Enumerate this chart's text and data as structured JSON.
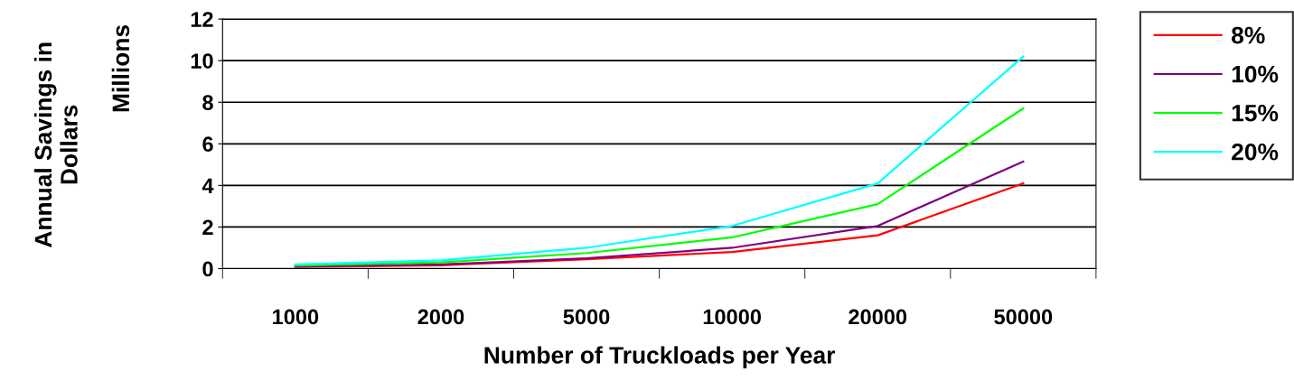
{
  "chart_data": {
    "type": "line",
    "xlabel": "Number of Truckloads per Year",
    "ylabel": "Annual Savings in\nDollars",
    "annotations": [
      "Millions"
    ],
    "categories": [
      "1000",
      "2000",
      "5000",
      "10000",
      "20000",
      "50000"
    ],
    "series": [
      {
        "name": "8%",
        "color": "#ff0000",
        "values": [
          0.08,
          0.16,
          0.45,
          0.8,
          1.6,
          4.1
        ]
      },
      {
        "name": "10%",
        "color": "#800080",
        "values": [
          0.1,
          0.2,
          0.5,
          1.0,
          2.05,
          5.15
        ]
      },
      {
        "name": "15%",
        "color": "#00ff00",
        "values": [
          0.15,
          0.3,
          0.75,
          1.5,
          3.1,
          7.7
        ]
      },
      {
        "name": "20%",
        "color": "#00ffff",
        "values": [
          0.2,
          0.4,
          1.0,
          2.05,
          4.1,
          10.2
        ]
      }
    ],
    "ylim": [
      0,
      12
    ],
    "yticks": [
      0,
      2,
      4,
      6,
      8,
      10,
      12
    ],
    "grid": "y",
    "legend": "right",
    "marker": "none",
    "line_style": "solid"
  }
}
